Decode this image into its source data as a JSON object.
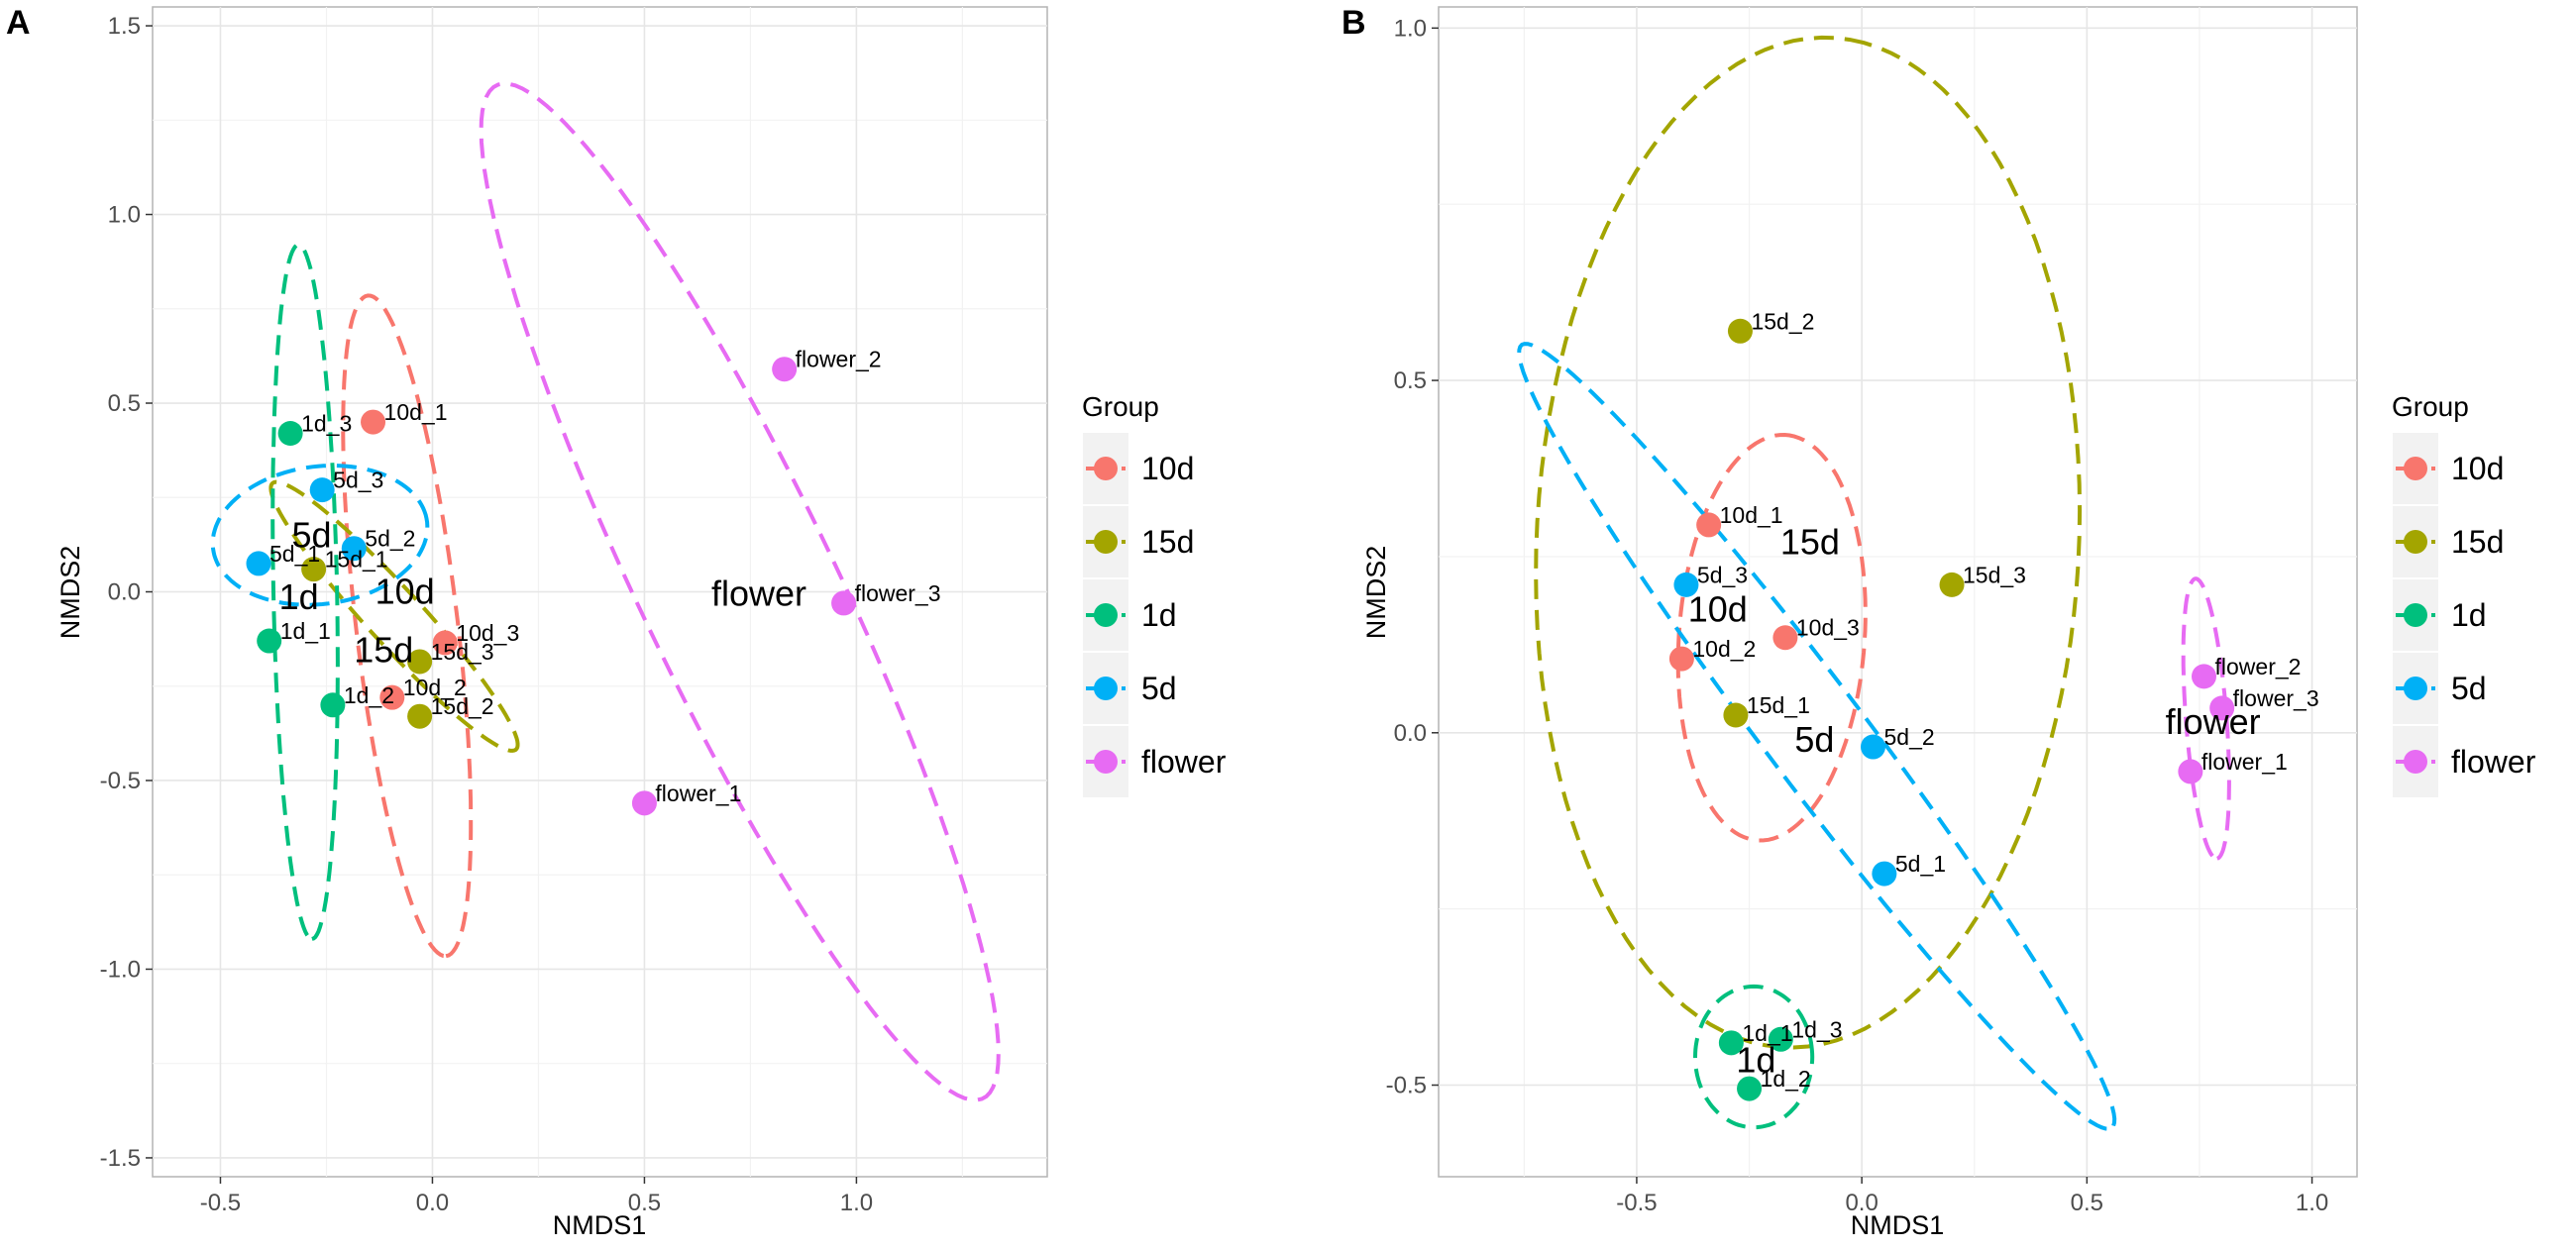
{
  "colors": {
    "10d": "#F8766D",
    "15d": "#A3A500",
    "1d": "#00BF7D",
    "5d": "#00B0F6",
    "flower": "#E76BF3"
  },
  "chart_data": [
    {
      "type": "scatter",
      "panel": "A",
      "xlabel": "NMDS1",
      "ylabel": "NMDS2",
      "xlim": [
        -0.66,
        1.45
      ],
      "ylim": [
        -1.55,
        1.55
      ],
      "xticks": [
        -0.5,
        0.0,
        0.5,
        1.0
      ],
      "xtick_labels": [
        "-0.5",
        "0.0",
        "0.5",
        "1.0"
      ],
      "yticks": [
        -1.5,
        -1.0,
        -0.5,
        0.0,
        0.5,
        1.0,
        1.5
      ],
      "ytick_labels": [
        "-1.5",
        "-1.0",
        "-0.5",
        "0.0",
        "0.5",
        "1.0",
        "1.5"
      ],
      "grid": true,
      "legend": {
        "title": "Group",
        "position": "right",
        "entries": [
          "10d",
          "15d",
          "1d",
          "5d",
          "flower"
        ]
      },
      "points": [
        {
          "label": "10d_1",
          "group": "10d",
          "x": -0.14,
          "y": 0.45
        },
        {
          "label": "10d_2",
          "group": "10d",
          "x": -0.095,
          "y": -0.28
        },
        {
          "label": "10d_3",
          "group": "10d",
          "x": 0.03,
          "y": -0.135
        },
        {
          "label": "15d_1",
          "group": "15d",
          "x": -0.28,
          "y": 0.06
        },
        {
          "label": "15d_2",
          "group": "15d",
          "x": -0.03,
          "y": -0.33
        },
        {
          "label": "15d_3",
          "group": "15d",
          "x": -0.03,
          "y": -0.185
        },
        {
          "label": "1d_1",
          "group": "1d",
          "x": -0.385,
          "y": -0.13
        },
        {
          "label": "1d_2",
          "group": "1d",
          "x": -0.235,
          "y": -0.3
        },
        {
          "label": "1d_3",
          "group": "1d",
          "x": -0.335,
          "y": 0.42
        },
        {
          "label": "5d_1",
          "group": "5d",
          "x": -0.41,
          "y": 0.075
        },
        {
          "label": "5d_2",
          "group": "5d",
          "x": -0.185,
          "y": 0.115
        },
        {
          "label": "5d_3",
          "group": "5d",
          "x": -0.26,
          "y": 0.27
        },
        {
          "label": "flower_1",
          "group": "flower",
          "x": 0.5,
          "y": -0.56
        },
        {
          "label": "flower_2",
          "group": "flower",
          "x": 0.83,
          "y": 0.59
        },
        {
          "label": "flower_3",
          "group": "flower",
          "x": 0.97,
          "y": -0.03
        }
      ],
      "group_labels": [
        {
          "text": "5d",
          "group": "5d",
          "x": -0.285,
          "y": 0.15
        },
        {
          "text": "1d",
          "group": "1d",
          "x": -0.315,
          "y": -0.015
        },
        {
          "text": "10d",
          "group": "10d",
          "x": -0.065,
          "y": 0.0
        },
        {
          "text": "15d",
          "group": "15d",
          "x": -0.115,
          "y": -0.155
        },
        {
          "text": "flower",
          "group": "flower",
          "x": 0.77,
          "y": -0.005
        }
      ],
      "ellipses": [
        {
          "group": "10d",
          "cx": -0.06,
          "cy": -0.09,
          "rx": 0.88,
          "ry": 0.12,
          "angle": -84
        },
        {
          "group": "15d",
          "cx": -0.09,
          "cy": -0.065,
          "rx": 0.455,
          "ry": 0.068,
          "angle": -51
        },
        {
          "group": "1d",
          "cx": -0.3,
          "cy": 0.0,
          "rx": 0.92,
          "ry": 0.075,
          "angle": -89
        },
        {
          "group": "5d",
          "cx": -0.265,
          "cy": 0.15,
          "rx": 0.255,
          "ry": 0.182,
          "angle": 10
        },
        {
          "group": "flower",
          "cx": 0.725,
          "cy": 0.0,
          "rx": 1.46,
          "ry": 0.235,
          "angle": -67
        }
      ]
    },
    {
      "type": "scatter",
      "panel": "B",
      "xlabel": "NMDS1",
      "ylabel": "NMDS2",
      "xlim": [
        -0.94,
        1.1
      ],
      "ylim": [
        -0.63,
        1.03
      ],
      "xticks": [
        -0.5,
        0.0,
        0.5,
        1.0
      ],
      "xtick_labels": [
        "-0.5",
        "0.0",
        "0.5",
        "1.0"
      ],
      "yticks": [
        -0.5,
        0.0,
        0.5,
        1.0
      ],
      "ytick_labels": [
        "-0.5",
        "0.0",
        "0.5",
        "1.0"
      ],
      "grid": true,
      "legend": {
        "title": "Group",
        "position": "right",
        "entries": [
          "10d",
          "15d",
          "1d",
          "5d",
          "flower"
        ]
      },
      "points": [
        {
          "label": "10d_1",
          "group": "10d",
          "x": -0.34,
          "y": 0.295
        },
        {
          "label": "10d_2",
          "group": "10d",
          "x": -0.4,
          "y": 0.105
        },
        {
          "label": "10d_3",
          "group": "10d",
          "x": -0.17,
          "y": 0.135
        },
        {
          "label": "15d_1",
          "group": "15d",
          "x": -0.28,
          "y": 0.025
        },
        {
          "label": "15d_2",
          "group": "15d",
          "x": -0.27,
          "y": 0.57
        },
        {
          "label": "15d_3",
          "group": "15d",
          "x": 0.2,
          "y": 0.21
        },
        {
          "label": "1d_1",
          "group": "1d",
          "x": -0.29,
          "y": -0.44
        },
        {
          "label": "1d_2",
          "group": "1d",
          "x": -0.25,
          "y": -0.505
        },
        {
          "label": "1d_3",
          "group": "1d",
          "x": -0.18,
          "y": -0.435
        },
        {
          "label": "5d_1",
          "group": "5d",
          "x": 0.05,
          "y": -0.2
        },
        {
          "label": "5d_2",
          "group": "5d",
          "x": 0.025,
          "y": -0.02
        },
        {
          "label": "5d_3",
          "group": "5d",
          "x": -0.39,
          "y": 0.21
        },
        {
          "label": "flower_1",
          "group": "flower",
          "x": 0.73,
          "y": -0.055
        },
        {
          "label": "flower_2",
          "group": "flower",
          "x": 0.76,
          "y": 0.08
        },
        {
          "label": "flower_3",
          "group": "flower",
          "x": 0.8,
          "y": 0.035
        }
      ],
      "group_labels": [
        {
          "text": "15d",
          "group": "15d",
          "x": -0.115,
          "y": 0.27
        },
        {
          "text": "10d",
          "group": "10d",
          "x": -0.32,
          "y": 0.175
        },
        {
          "text": "5d",
          "group": "5d",
          "x": -0.105,
          "y": -0.01
        },
        {
          "text": "flower",
          "group": "flower",
          "x": 0.78,
          "y": 0.015
        },
        {
          "text": "1d",
          "group": "1d",
          "x": -0.235,
          "y": -0.465
        }
      ],
      "ellipses": [
        {
          "group": "10d",
          "cx": -0.2,
          "cy": 0.135,
          "rx": 0.29,
          "ry": 0.205,
          "angle": 80
        },
        {
          "group": "15d",
          "cx": -0.12,
          "cy": 0.27,
          "rx": 0.72,
          "ry": 0.6,
          "angle": 80
        },
        {
          "group": "1d",
          "cx": -0.24,
          "cy": -0.46,
          "rx": 0.13,
          "ry": 0.1,
          "angle": 0
        },
        {
          "group": "5d",
          "cx": -0.1,
          "cy": -0.005,
          "rx": 0.86,
          "ry": 0.09,
          "angle": -40
        },
        {
          "group": "flower",
          "cx": 0.765,
          "cy": 0.02,
          "rx": 0.2,
          "ry": 0.045,
          "angle": -83
        }
      ]
    }
  ]
}
